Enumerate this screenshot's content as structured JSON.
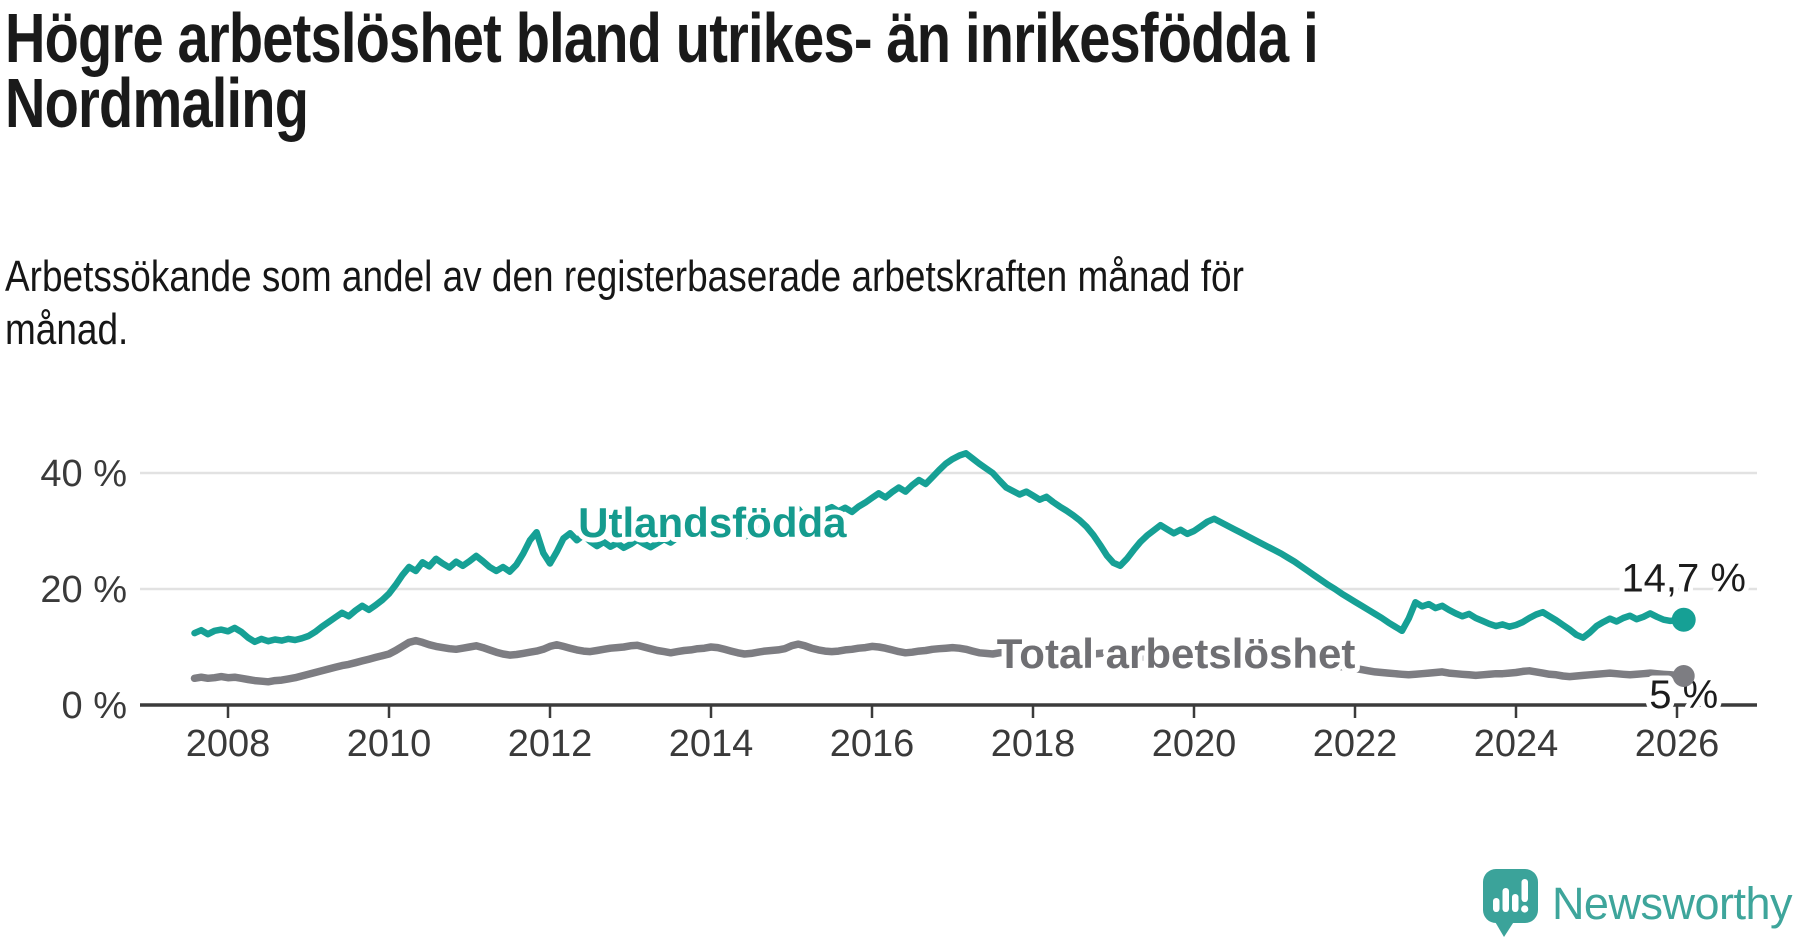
{
  "title_lines": [
    "Högre arbetslöshet bland utrikes- än inrikesfödda i",
    "Nordmaling"
  ],
  "subtitle_lines": [
    "Arbetssökande som andel av den registerbaserade arbetskraften månad för",
    "månad."
  ],
  "branding": {
    "logo_text": "Newsworthy",
    "logo_color": "#3ea59b",
    "logo_icon": "speech-bubble-bar-chart-icon"
  },
  "chart_data": {
    "type": "line",
    "title": "Högre arbetslöshet bland utrikes- än inrikesfödda i Nordmaling",
    "subtitle": "Arbetssökande som andel av den registerbaserade arbetskraften månad för månad.",
    "unit": "%",
    "grid": "horizontal",
    "ylim": [
      0,
      45
    ],
    "x_start_year": 2007.5833,
    "x_step_months": 1,
    "x_ticks": [
      {
        "year": 2008,
        "label": "2008"
      },
      {
        "year": 2010,
        "label": "2010"
      },
      {
        "year": 2012,
        "label": "2012"
      },
      {
        "year": 2014,
        "label": "2014"
      },
      {
        "year": 2016,
        "label": "2016"
      },
      {
        "year": 2018,
        "label": "2018"
      },
      {
        "year": 2020,
        "label": "2020"
      },
      {
        "year": 2022,
        "label": "2022"
      },
      {
        "year": 2024,
        "label": "2024"
      },
      {
        "year": 2026,
        "label": "2026"
      }
    ],
    "y_ticks": [
      {
        "value": 0,
        "label": "0 %"
      },
      {
        "value": 20,
        "label": "20 %"
      },
      {
        "value": 40,
        "label": "40 %"
      }
    ],
    "series": [
      {
        "name": "Utlandsfödda",
        "color": "#16a095",
        "end_label": "14,7 %",
        "last_value": 14.7,
        "values": [
          12.4,
          12.9,
          12.2,
          12.8,
          13.0,
          12.7,
          13.3,
          12.6,
          11.6,
          10.9,
          11.4,
          11.0,
          11.3,
          11.1,
          11.4,
          11.2,
          11.5,
          11.9,
          12.6,
          13.5,
          14.3,
          15.1,
          15.9,
          15.3,
          16.3,
          17.1,
          16.4,
          17.2,
          18.1,
          19.2,
          20.7,
          22.4,
          23.8,
          23.1,
          24.6,
          23.9,
          25.2,
          24.4,
          23.7,
          24.7,
          24.0,
          24.8,
          25.7,
          24.8,
          23.8,
          23.1,
          23.8,
          23.0,
          24.2,
          26.1,
          28.4,
          29.8,
          26.2,
          24.4,
          26.4,
          28.7,
          29.6,
          28.4,
          29.3,
          28.2,
          27.4,
          28.1,
          27.3,
          27.9,
          27.1,
          27.7,
          28.5,
          27.8,
          27.2,
          27.9,
          28.6,
          28.0,
          28.9,
          29.6,
          28.8,
          29.4,
          30.0,
          29.4,
          30.2,
          29.5,
          30.4,
          29.6,
          29.0,
          29.7,
          30.4,
          29.8,
          30.6,
          31.4,
          32.5,
          33.2,
          33.8,
          32.3,
          31.7,
          32.9,
          33.6,
          34.1,
          33.4,
          34.0,
          33.3,
          34.2,
          34.9,
          35.7,
          36.5,
          35.8,
          36.7,
          37.5,
          36.8,
          37.9,
          38.8,
          38.1,
          39.3,
          40.5,
          41.6,
          42.4,
          43.0,
          43.4,
          42.5,
          41.6,
          40.8,
          40.0,
          38.7,
          37.5,
          36.9,
          36.3,
          36.8,
          36.1,
          35.4,
          35.9,
          35.0,
          34.2,
          33.5,
          32.7,
          31.8,
          30.7,
          29.3,
          27.6,
          25.8,
          24.5,
          24.0,
          25.2,
          26.7,
          28.1,
          29.2,
          30.1,
          31.0,
          30.3,
          29.6,
          30.2,
          29.5,
          30.0,
          30.8,
          31.6,
          32.1,
          31.5,
          30.9,
          30.3,
          29.7,
          29.1,
          28.5,
          27.9,
          27.3,
          26.7,
          26.1,
          25.4,
          24.7,
          23.9,
          23.1,
          22.3,
          21.5,
          20.7,
          20.0,
          19.2,
          18.5,
          17.8,
          17.1,
          16.4,
          15.7,
          15.0,
          14.2,
          13.5,
          12.8,
          14.9,
          17.7,
          17.0,
          17.4,
          16.7,
          17.1,
          16.4,
          15.8,
          15.3,
          15.7,
          15.0,
          14.5,
          14.0,
          13.6,
          13.9,
          13.5,
          13.8,
          14.3,
          15.0,
          15.6,
          16.0,
          15.3,
          14.6,
          13.8,
          13.0,
          12.1,
          11.6,
          12.5,
          13.6,
          14.3,
          14.9,
          14.4,
          15.0,
          15.4,
          14.8,
          15.2,
          15.8,
          15.2,
          14.7,
          14.5,
          14.6,
          14.7
        ]
      },
      {
        "name": "Total arbetslöshet",
        "color": "#7d7d82",
        "end_label": "5 %",
        "last_value": 5.0,
        "values": [
          4.6,
          4.8,
          4.6,
          4.7,
          4.9,
          4.7,
          4.8,
          4.6,
          4.4,
          4.2,
          4.1,
          4.0,
          4.2,
          4.3,
          4.5,
          4.7,
          5.0,
          5.3,
          5.6,
          5.9,
          6.2,
          6.5,
          6.8,
          7.0,
          7.3,
          7.6,
          7.9,
          8.2,
          8.5,
          8.8,
          9.4,
          10.1,
          10.8,
          11.1,
          10.8,
          10.4,
          10.1,
          9.9,
          9.7,
          9.6,
          9.8,
          10.0,
          10.2,
          9.9,
          9.5,
          9.1,
          8.8,
          8.6,
          8.7,
          8.9,
          9.1,
          9.3,
          9.6,
          10.1,
          10.4,
          10.1,
          9.8,
          9.5,
          9.3,
          9.2,
          9.4,
          9.6,
          9.8,
          9.9,
          10.0,
          10.2,
          10.3,
          10.0,
          9.7,
          9.4,
          9.2,
          9.0,
          9.2,
          9.4,
          9.5,
          9.7,
          9.8,
          10.0,
          9.9,
          9.6,
          9.3,
          9.0,
          8.8,
          8.9,
          9.1,
          9.3,
          9.4,
          9.5,
          9.7,
          10.2,
          10.5,
          10.2,
          9.8,
          9.5,
          9.3,
          9.2,
          9.3,
          9.5,
          9.6,
          9.8,
          9.9,
          10.1,
          10.0,
          9.8,
          9.5,
          9.2,
          9.0,
          9.1,
          9.3,
          9.4,
          9.6,
          9.7,
          9.8,
          9.9,
          9.8,
          9.6,
          9.3,
          9.0,
          8.9,
          8.8,
          9.0,
          9.1,
          9.2,
          9.3,
          9.4,
          9.4,
          9.3,
          9.1,
          8.8,
          8.6,
          8.5,
          8.4,
          8.6,
          8.7,
          8.8,
          8.9,
          9.0,
          9.0,
          8.9,
          8.7,
          8.5,
          8.3,
          8.2,
          8.3,
          8.5,
          8.6,
          8.7,
          8.8,
          8.9,
          9.0,
          9.2,
          9.5,
          9.8,
          9.9,
          9.7,
          9.5,
          9.4,
          9.3,
          9.2,
          9.1,
          9.0,
          8.9,
          8.7,
          8.5,
          8.2,
          7.9,
          7.6,
          7.4,
          7.2,
          7.0,
          6.8,
          6.6,
          6.5,
          6.3,
          6.1,
          5.9,
          5.7,
          5.6,
          5.5,
          5.4,
          5.3,
          5.2,
          5.3,
          5.4,
          5.5,
          5.6,
          5.7,
          5.5,
          5.4,
          5.3,
          5.2,
          5.1,
          5.2,
          5.3,
          5.4,
          5.4,
          5.5,
          5.6,
          5.8,
          5.9,
          5.7,
          5.5,
          5.3,
          5.2,
          5.0,
          4.9,
          5.0,
          5.1,
          5.2,
          5.3,
          5.4,
          5.5,
          5.4,
          5.3,
          5.2,
          5.3,
          5.4,
          5.5,
          5.4,
          5.3,
          5.2,
          5.1,
          5.0
        ]
      }
    ],
    "series_labels": [
      {
        "text": "Utlandsfödda",
        "year": 2012.35,
        "value": 29.0,
        "color": "#159b8e"
      },
      {
        "text": "Total arbetslöshet",
        "year": 2017.55,
        "value": 6.4,
        "color": "#6f6f73"
      }
    ]
  }
}
